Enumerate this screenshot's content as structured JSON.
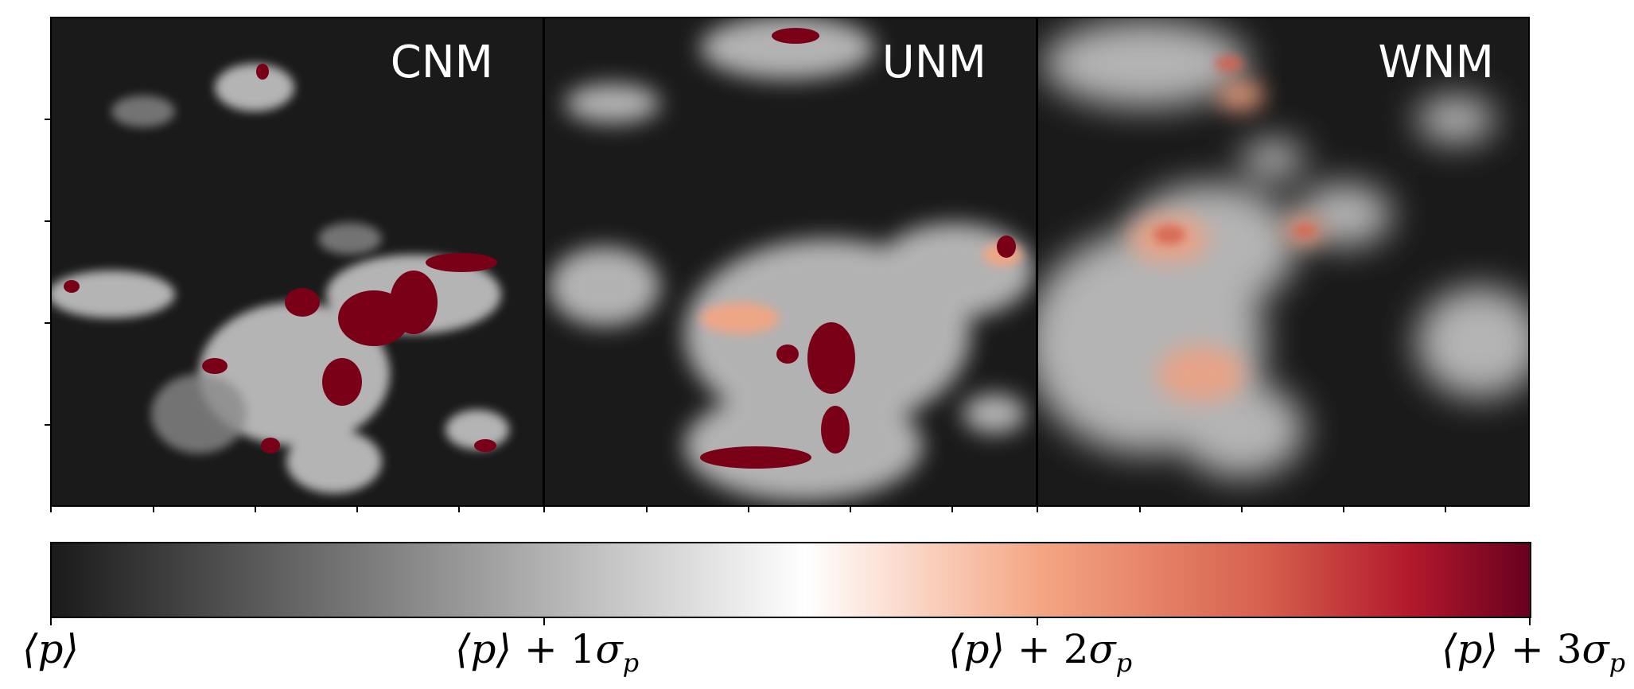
{
  "panels": [
    {
      "label": "CNM"
    },
    {
      "label": "UNM"
    },
    {
      "label": "WNM"
    }
  ],
  "colorbar": {
    "colors": [
      "#1a1a1a",
      "#bfbfbf",
      "#ffffff",
      "#f4a582",
      "#d6604d",
      "#b2182b",
      "#67001f"
    ],
    "ticks": [
      {
        "base": "⟨p⟩",
        "plus": "",
        "multiplier": "",
        "sigma": "",
        "sub": ""
      },
      {
        "base": "⟨p⟩",
        "plus": " + ",
        "multiplier": "1",
        "sigma": "σ",
        "sub": "p"
      },
      {
        "base": "⟨p⟩",
        "plus": " + ",
        "multiplier": "2",
        "sigma": "σ",
        "sub": "p"
      },
      {
        "base": "⟨p⟩",
        "plus": " + ",
        "multiplier": "3",
        "sigma": "σ",
        "sub": "p"
      }
    ]
  }
}
